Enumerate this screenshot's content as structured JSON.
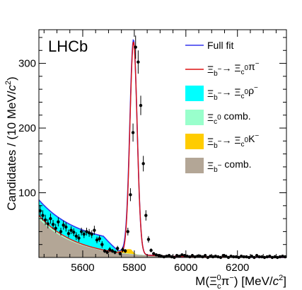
{
  "chart_data": {
    "type": "line",
    "experiment_label": "LHCb",
    "xlabel": "M(Ξᴄ⁰π⁻) [MeV/c²]",
    "ylabel": "Candidates / (10 MeV/c²)",
    "xlim": [
      5430,
      6390
    ],
    "ylim": [
      0,
      352
    ],
    "x_ticks": [
      5600,
      5800,
      6000,
      6200
    ],
    "y_ticks": [
      100,
      200,
      300
    ],
    "x_tick_labels": [
      "5600",
      "5800",
      "6000",
      "6200"
    ],
    "y_tick_labels": [
      "100",
      "200",
      "300"
    ],
    "legend_position": "top-right",
    "legend": [
      {
        "key": "full_fit",
        "text": "Full fit",
        "style": "line",
        "color": "#3333ee"
      },
      {
        "key": "signal",
        "text": "Ξ_b⁻→ Ξ_c⁰π⁻",
        "style": "line",
        "color": "#dd1111"
      },
      {
        "key": "rho",
        "text": "Ξ_b⁻→ Ξ_c⁰ρ⁻",
        "style": "box",
        "color": "#00ffff"
      },
      {
        "key": "comb_c",
        "text": "Ξ_c⁰ comb.",
        "style": "box",
        "color": "#99ffcc"
      },
      {
        "key": "kaon",
        "text": "Ξ_b⁻→ Ξ_c⁰K⁻",
        "style": "box",
        "color": "#ffcc00"
      },
      {
        "key": "comb_b",
        "text": "Ξ_b⁻ comb.",
        "style": "box",
        "color": "#b3a696"
      }
    ],
    "data_points": {
      "x": [
        5435,
        5445,
        5455,
        5465,
        5475,
        5485,
        5495,
        5505,
        5515,
        5525,
        5535,
        5545,
        5555,
        5565,
        5575,
        5585,
        5595,
        5605,
        5615,
        5625,
        5635,
        5645,
        5655,
        5665,
        5675,
        5685,
        5695,
        5705,
        5715,
        5725,
        5735,
        5745,
        5755,
        5765,
        5775,
        5785,
        5795,
        5805,
        5815,
        5825,
        5835,
        5845,
        5855,
        5865,
        5875,
        5885,
        5895,
        5905,
        5915,
        5925,
        5935,
        5945,
        5955,
        5965,
        5975,
        5985,
        5995,
        6005,
        6015,
        6025,
        6035,
        6045,
        6055,
        6065,
        6075,
        6085,
        6095,
        6105,
        6115,
        6125,
        6135,
        6145,
        6155,
        6165,
        6175,
        6185,
        6195,
        6205,
        6215,
        6225,
        6235,
        6245,
        6255,
        6265,
        6275,
        6285,
        6295,
        6305,
        6315,
        6325,
        6335,
        6345,
        6355,
        6365,
        6375,
        6385
      ],
      "y": [
        72,
        65,
        58,
        52,
        60,
        51,
        45,
        55,
        40,
        50,
        47,
        37,
        42,
        39,
        33,
        30,
        40,
        36,
        40,
        38,
        36,
        42,
        27,
        29,
        20,
        10,
        8,
        12,
        10,
        8,
        14,
        6,
        12,
        10,
        40,
        97,
        193,
        325,
        302,
        235,
        145,
        65,
        28,
        11,
        6,
        4,
        3,
        2,
        1,
        2,
        3,
        1,
        0,
        3,
        2,
        4,
        3,
        2,
        1,
        3,
        1,
        2,
        2,
        1,
        3,
        0,
        2,
        1,
        2,
        1,
        0,
        3,
        2,
        0,
        2,
        1,
        1,
        0,
        2,
        1,
        1,
        0,
        2,
        0,
        3,
        1,
        1,
        0,
        1,
        2,
        0,
        1,
        0,
        1,
        2,
        1
      ],
      "yerr": [
        9,
        8,
        8,
        7,
        8,
        7,
        7,
        7,
        6,
        7,
        7,
        6,
        6,
        6,
        6,
        6,
        6,
        6,
        6,
        6,
        6,
        7,
        5,
        5,
        5,
        3,
        3,
        4,
        3,
        3,
        4,
        3,
        4,
        3,
        6,
        10,
        14,
        18,
        18,
        15,
        12,
        8,
        5,
        3,
        2,
        2,
        2,
        1,
        1,
        1,
        2,
        1,
        0,
        2,
        1,
        2,
        2,
        1,
        1,
        2,
        1,
        1,
        1,
        1,
        2,
        0,
        1,
        1,
        1,
        1,
        0,
        2,
        1,
        0,
        1,
        1,
        1,
        0,
        1,
        1,
        1,
        0,
        1,
        0,
        2,
        1,
        1,
        0,
        1,
        1,
        0,
        1,
        0,
        1,
        1,
        1
      ]
    },
    "fit": {
      "comb_b": {
        "A": 60,
        "tau": 145
      },
      "comb_c": {
        "A": 5,
        "tau": 160
      },
      "rho": {
        "amplitude": 24,
        "x_start": 5430,
        "x_end": 5740,
        "taper_start": 5680
      },
      "kaon": {
        "amplitude": 7,
        "mean": 5785,
        "sigma_left": 30,
        "sigma_right": 9
      },
      "signal": {
        "amplitude": 328,
        "mean": 5797,
        "sigma": 14
      }
    }
  }
}
